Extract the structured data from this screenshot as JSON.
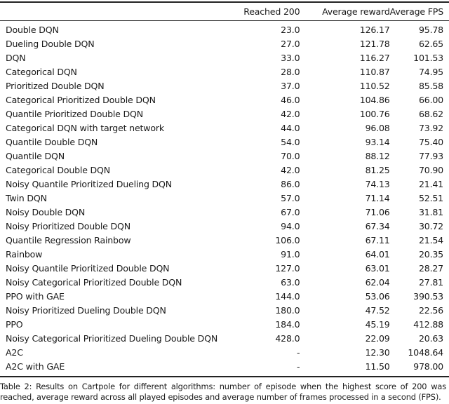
{
  "table": {
    "headers": [
      "",
      "Reached 200",
      "Average reward",
      "Average FPS"
    ],
    "rows": [
      [
        "Double DQN",
        "23.0",
        "126.17",
        "95.78"
      ],
      [
        "Dueling Double DQN",
        "27.0",
        "121.78",
        "62.65"
      ],
      [
        "DQN",
        "33.0",
        "116.27",
        "101.53"
      ],
      [
        "Categorical DQN",
        "28.0",
        "110.87",
        "74.95"
      ],
      [
        "Prioritized Double DQN",
        "37.0",
        "110.52",
        "85.58"
      ],
      [
        "Categorical Prioritized Double DQN",
        "46.0",
        "104.86",
        "66.00"
      ],
      [
        "Quantile Prioritized Double DQN",
        "42.0",
        "100.76",
        "68.62"
      ],
      [
        "Categorical DQN with target network",
        "44.0",
        "96.08",
        "73.92"
      ],
      [
        "Quantile Double DQN",
        "54.0",
        "93.14",
        "75.40"
      ],
      [
        "Quantile DQN",
        "70.0",
        "88.12",
        "77.93"
      ],
      [
        "Categorical Double DQN",
        "42.0",
        "81.25",
        "70.90"
      ],
      [
        "Noisy Quantile Prioritized Dueling DQN",
        "86.0",
        "74.13",
        "21.41"
      ],
      [
        "Twin DQN",
        "57.0",
        "71.14",
        "52.51"
      ],
      [
        "Noisy Double DQN",
        "67.0",
        "71.06",
        "31.81"
      ],
      [
        "Noisy Prioritized Double DQN",
        "94.0",
        "67.34",
        "30.72"
      ],
      [
        "Quantile Regression Rainbow",
        "106.0",
        "67.11",
        "21.54"
      ],
      [
        "Rainbow",
        "91.0",
        "64.01",
        "20.35"
      ],
      [
        "Noisy Quantile Prioritized Double DQN",
        "127.0",
        "63.01",
        "28.27"
      ],
      [
        "Noisy Categorical Prioritized Double DQN",
        "63.0",
        "62.04",
        "27.81"
      ],
      [
        "PPO with GAE",
        "144.0",
        "53.06",
        "390.53"
      ],
      [
        "Noisy Prioritized Dueling Double DQN",
        "180.0",
        "47.52",
        "22.56"
      ],
      [
        "PPO",
        "184.0",
        "45.19",
        "412.88"
      ],
      [
        "Noisy Categorical Prioritized Dueling Double DQN",
        "428.0",
        "22.09",
        "20.63"
      ],
      [
        "A2C",
        "-",
        "12.30",
        "1048.64"
      ],
      [
        "A2C with GAE",
        "-",
        "11.50",
        "978.00"
      ]
    ]
  },
  "caption": "Table 2: Results on Cartpole for different algorithms: number of episode when the highest score of 200 was reached, average reward across all played episodes and average number of frames processed in a second (FPS)."
}
